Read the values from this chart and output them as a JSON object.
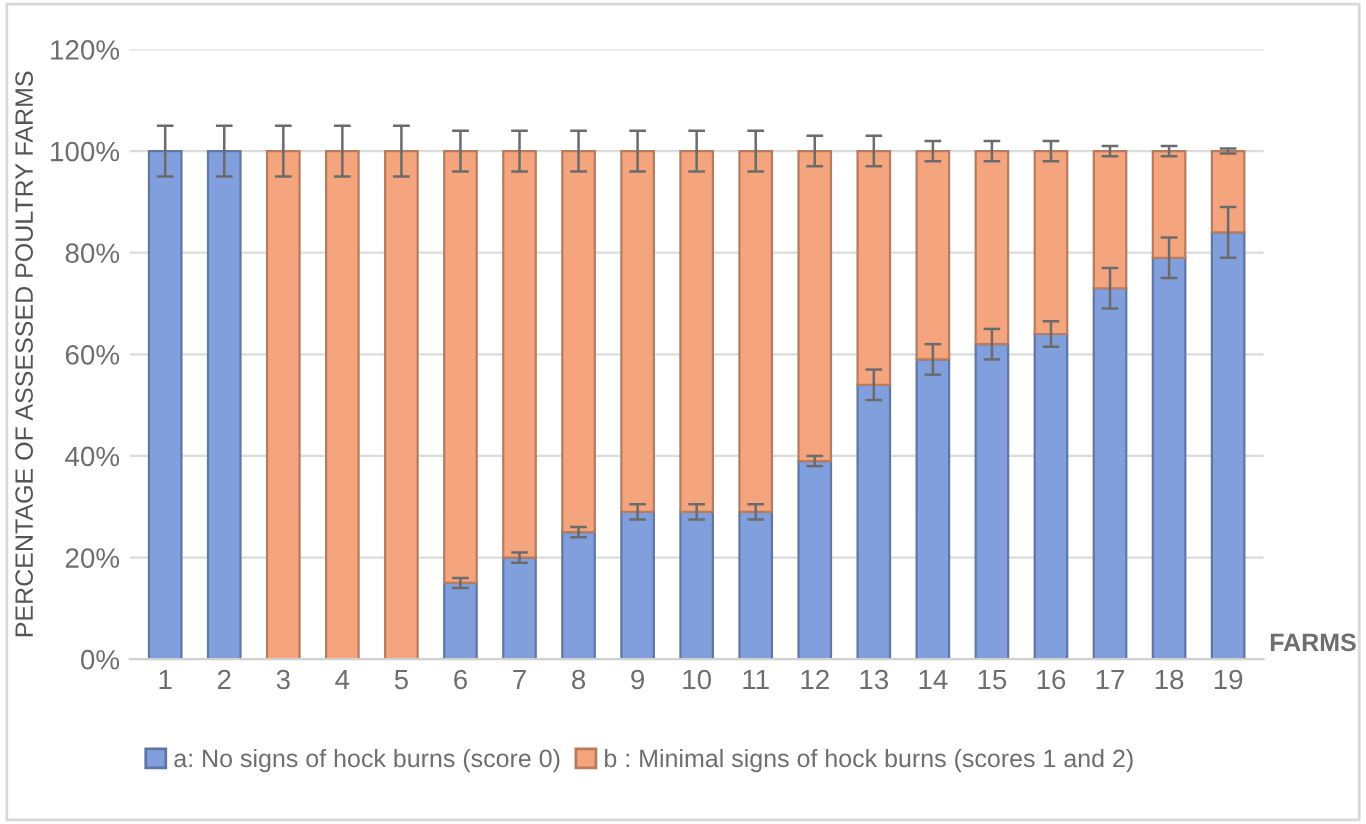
{
  "chart_data": {
    "type": "bar",
    "stacked": true,
    "categories": [
      "1",
      "2",
      "3",
      "4",
      "5",
      "6",
      "7",
      "8",
      "9",
      "10",
      "11",
      "12",
      "13",
      "14",
      "15",
      "16",
      "17",
      "18",
      "19"
    ],
    "series": [
      {
        "name": "a: No signs of hock burns (score 0)",
        "color": "#819fdc",
        "values": [
          100,
          100,
          0,
          0,
          0,
          15,
          20,
          25,
          29,
          29,
          29,
          39,
          54,
          59,
          62,
          64,
          73,
          79,
          84
        ],
        "errors": [
          5,
          5,
          null,
          null,
          null,
          1,
          1,
          1,
          1.5,
          1.5,
          1.5,
          1,
          3,
          3,
          3,
          2.5,
          4,
          4,
          5
        ]
      },
      {
        "name": "b : Minimal signs of hock burns (scores 1 and 2)",
        "color": "#f5a57e",
        "values": [
          0,
          0,
          100,
          100,
          100,
          85,
          80,
          75,
          71,
          71,
          71,
          61,
          46,
          41,
          38,
          36,
          27,
          21,
          16
        ],
        "errors": [
          null,
          null,
          5,
          5,
          5,
          4,
          4,
          4,
          4,
          4,
          4,
          3,
          3,
          2,
          2,
          2,
          1,
          1,
          0.5
        ]
      }
    ],
    "ylabel": "PERCENTAGE OF ASSESSED POULTRY FARMS",
    "xlabel": "FARMS",
    "ylim": [
      0,
      120
    ],
    "yticks": [
      {
        "value": 0,
        "label": "0%"
      },
      {
        "value": 20,
        "label": "20%"
      },
      {
        "value": 40,
        "label": "40%"
      },
      {
        "value": 60,
        "label": "60%"
      },
      {
        "value": 80,
        "label": "80%"
      },
      {
        "value": 100,
        "label": "100%"
      },
      {
        "value": 120,
        "label": "120%"
      }
    ],
    "grid": "y",
    "legend": "bottom"
  }
}
